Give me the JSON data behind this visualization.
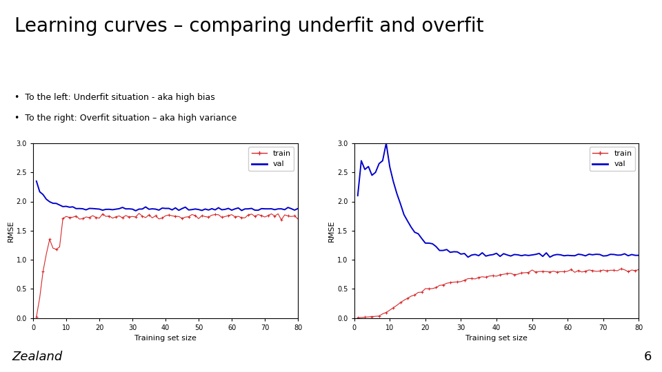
{
  "title": "Learning curves – comparing underfit and overfit",
  "bullet1": "To the left: Underfit situation - aka high bias",
  "bullet2": "To the right: Overfit situation – aka high variance",
  "xlabel": "Training set size",
  "ylabel": "RMSE",
  "xlim": [
    0,
    80
  ],
  "ylim": [
    0.0,
    3.0
  ],
  "train_color": "#d62728",
  "val_color": "#0000cc",
  "background_color": "#ffffff",
  "footer_color": "#f7f0a8",
  "footer_text": "Zealand",
  "page_number": "6",
  "title_fontsize": 20,
  "bullet_fontsize": 9,
  "axis_label_fontsize": 8,
  "tick_fontsize": 7,
  "legend_fontsize": 8,
  "footer_fontsize": 13
}
